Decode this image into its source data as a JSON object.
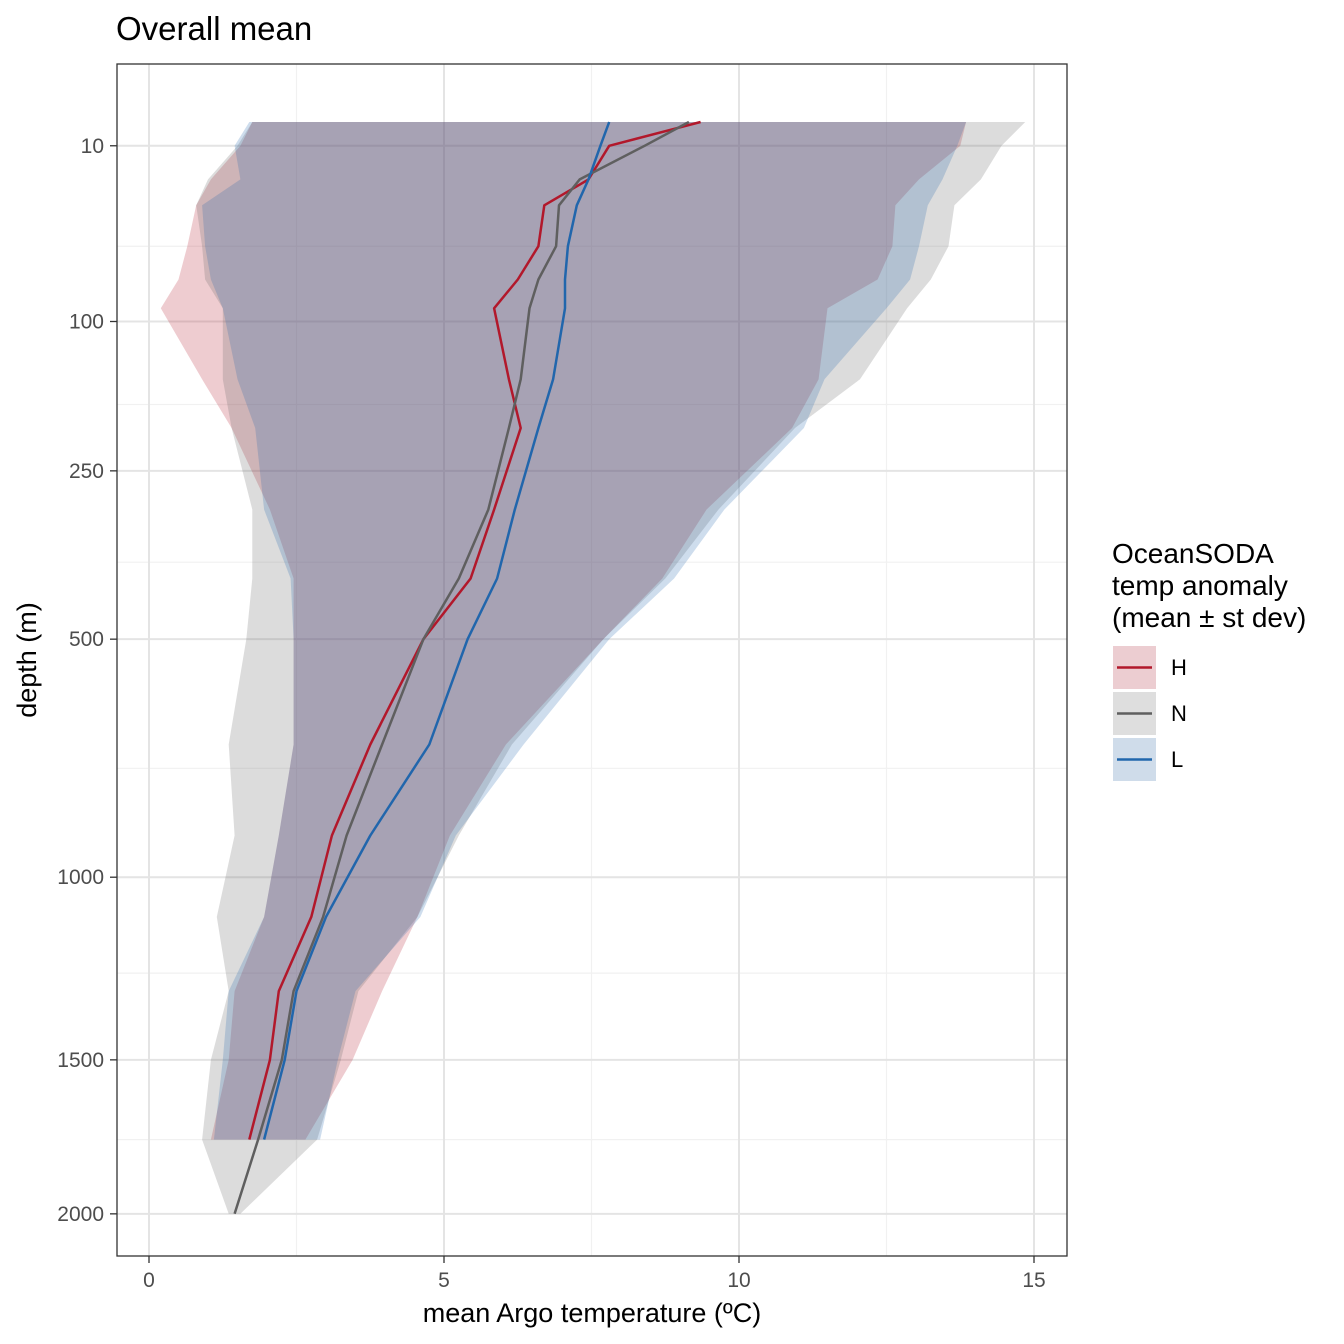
{
  "chart_data": {
    "type": "area",
    "title": "Overall mean",
    "xlabel": "mean Argo temperature (ºC)",
    "ylabel": "depth (m)",
    "xlim": [
      -0.55,
      15.55
    ],
    "x_ticks": [
      0,
      5,
      10,
      15
    ],
    "y_scale": "sqrt, reversed",
    "y_ticks": [
      10,
      100,
      250,
      500,
      1000,
      1500,
      2000
    ],
    "y_minor_breaks": [
      50,
      175,
      375,
      750,
      1250,
      1750
    ],
    "grid": true,
    "legend": {
      "title": [
        "OceanSODA",
        "temp anomaly",
        "(mean ± st dev)"
      ],
      "position": "right",
      "entries": [
        {
          "label": "H",
          "line_color": "#b2182b",
          "fill_color": "#eccdd1"
        },
        {
          "label": "N",
          "line_color": "#5f5f5f",
          "fill_color": "#dedede"
        },
        {
          "label": "L",
          "line_color": "#2166ac",
          "fill_color": "#cfdcea"
        }
      ]
    },
    "series": [
      {
        "name": "H",
        "color": "#b2182b",
        "depth": [
          5,
          10,
          20,
          30,
          50,
          70,
          90,
          150,
          200,
          300,
          400,
          500,
          700,
          900,
          1100,
          1300,
          1500,
          1750
        ],
        "mean": [
          9.35,
          7.8,
          7.45,
          6.7,
          6.6,
          6.25,
          5.85,
          6.1,
          6.3,
          5.85,
          5.45,
          4.65,
          3.75,
          3.1,
          2.75,
          2.2,
          2.05,
          1.7
        ],
        "lower": [
          1.75,
          1.55,
          1.05,
          0.8,
          0.65,
          0.5,
          0.2,
          0.9,
          1.4,
          2.05,
          2.45,
          2.45,
          2.45,
          2.2,
          1.95,
          1.45,
          1.35,
          1.05
        ],
        "upper": [
          13.85,
          13.75,
          13.05,
          12.65,
          12.6,
          12.35,
          11.5,
          11.35,
          10.9,
          9.45,
          8.7,
          7.7,
          6.05,
          5.1,
          4.55,
          3.95,
          3.45,
          2.65
        ]
      },
      {
        "name": "N",
        "color": "#5f5f5f",
        "depth": [
          5,
          10,
          20,
          30,
          50,
          70,
          90,
          150,
          200,
          300,
          400,
          500,
          700,
          900,
          1100,
          1300,
          1500,
          1750,
          2000
        ],
        "mean": [
          9.15,
          8.4,
          7.3,
          6.95,
          6.9,
          6.6,
          6.45,
          6.3,
          6.1,
          5.75,
          5.25,
          4.65,
          3.95,
          3.35,
          2.95,
          2.45,
          2.25,
          1.85,
          1.45
        ],
        "lower": [
          1.75,
          1.5,
          1.0,
          0.8,
          0.9,
          0.95,
          1.25,
          1.25,
          1.4,
          1.75,
          1.75,
          1.65,
          1.35,
          1.45,
          1.15,
          1.35,
          1.05,
          0.9,
          1.35
        ],
        "upper": [
          14.85,
          14.45,
          14.1,
          13.65,
          13.55,
          13.25,
          12.85,
          12.05,
          10.95,
          9.65,
          8.75,
          7.7,
          6.15,
          5.25,
          4.55,
          3.55,
          3.25,
          2.85,
          1.55
        ]
      },
      {
        "name": "L",
        "color": "#2166ac",
        "depth": [
          5,
          10,
          20,
          30,
          50,
          70,
          90,
          150,
          200,
          300,
          400,
          500,
          700,
          900,
          1100,
          1300,
          1500,
          1750
        ],
        "mean": [
          7.8,
          7.65,
          7.45,
          7.25,
          7.1,
          7.05,
          7.05,
          6.85,
          6.6,
          6.2,
          5.9,
          5.4,
          4.75,
          3.75,
          3.0,
          2.5,
          2.3,
          1.95
        ],
        "lower": [
          1.7,
          1.45,
          1.55,
          0.9,
          0.95,
          1.05,
          1.25,
          1.5,
          1.8,
          1.95,
          2.4,
          2.45,
          2.45,
          2.2,
          1.95,
          1.35,
          1.25,
          1.1
        ],
        "upper": [
          13.85,
          13.7,
          13.45,
          13.2,
          13.05,
          12.9,
          12.5,
          11.45,
          11.1,
          9.75,
          8.9,
          7.8,
          6.35,
          5.2,
          4.6,
          3.5,
          3.2,
          2.9
        ]
      }
    ]
  }
}
